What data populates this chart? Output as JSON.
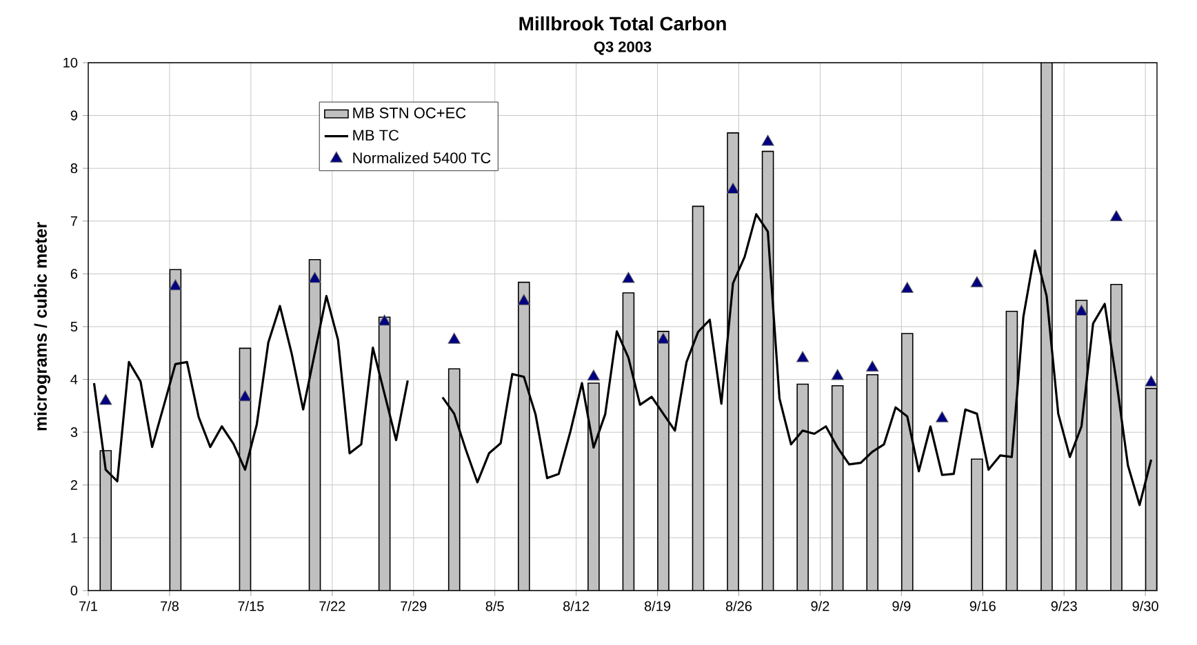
{
  "chart_data": {
    "type": "bar",
    "title": "Millbrook Total Carbon",
    "subtitle": "Q3 2003",
    "ylabel": "micrograms / cubic meter",
    "xlim": [
      "2003-07-01",
      "2003-10-01"
    ],
    "ylim": [
      0,
      10
    ],
    "xticks": [
      {
        "value": "2003-07-01",
        "label": "7/1"
      },
      {
        "value": "2003-07-08",
        "label": "7/8"
      },
      {
        "value": "2003-07-15",
        "label": "7/15"
      },
      {
        "value": "2003-07-22",
        "label": "7/22"
      },
      {
        "value": "2003-07-29",
        "label": "7/29"
      },
      {
        "value": "2003-08-05",
        "label": "8/5"
      },
      {
        "value": "2003-08-12",
        "label": "8/12"
      },
      {
        "value": "2003-08-19",
        "label": "8/19"
      },
      {
        "value": "2003-08-26",
        "label": "8/26"
      },
      {
        "value": "2003-09-02",
        "label": "9/2"
      },
      {
        "value": "2003-09-09",
        "label": "9/9"
      },
      {
        "value": "2003-09-16",
        "label": "9/16"
      },
      {
        "value": "2003-09-23",
        "label": "9/23"
      },
      {
        "value": "2003-09-30",
        "label": "9/30"
      }
    ],
    "yticks": [
      0,
      1,
      2,
      3,
      4,
      5,
      6,
      7,
      8,
      9,
      10
    ],
    "grid": true,
    "legend": "top left",
    "series": [
      {
        "name": "MB STN OC+EC",
        "color": "#c0c0c0",
        "x": [
          "2003-07-02T12:00",
          "2003-07-08T12:00",
          "2003-07-14T12:00",
          "2003-07-20T12:00",
          "2003-07-26T12:00",
          "2003-08-01T12:00",
          "2003-08-07T12:00",
          "2003-08-13T12:00",
          "2003-08-16T12:00",
          "2003-08-19T12:00",
          "2003-08-22T12:00",
          "2003-08-25T12:00",
          "2003-08-28T12:00",
          "2003-08-31T12:00",
          "2003-09-03T12:00",
          "2003-09-06T12:00",
          "2003-09-09T12:00",
          "2003-09-15T12:00",
          "2003-09-18T12:00",
          "2003-09-21T12:00",
          "2003-09-24T12:00",
          "2003-09-27T12:00",
          "2003-09-30T12:00"
        ],
        "values": [
          2.65,
          6.08,
          4.59,
          6.27,
          5.18,
          4.2,
          5.84,
          3.93,
          5.64,
          4.91,
          7.28,
          8.67,
          8.32,
          3.91,
          3.88,
          4.09,
          4.87,
          2.49,
          5.29,
          10,
          5.5,
          5.8,
          3.83
        ]
      },
      {
        "name": "MB TC",
        "type": "line",
        "color": "#000000",
        "x": [
          "2003-07-01T12:00",
          "2003-07-02T12:00",
          "2003-07-03T12:00",
          "2003-07-04T12:00",
          "2003-07-05T12:00",
          "2003-07-06T12:00",
          "2003-07-07T12:00",
          "2003-07-08T12:00",
          "2003-07-09T12:00",
          "2003-07-10T12:00",
          "2003-07-11T12:00",
          "2003-07-12T12:00",
          "2003-07-13T12:00",
          "2003-07-14T12:00",
          "2003-07-15T12:00",
          "2003-07-16T12:00",
          "2003-07-17T12:00",
          "2003-07-18T12:00",
          "2003-07-19T12:00",
          "2003-07-20T12:00",
          "2003-07-21T12:00",
          "2003-07-22T12:00",
          "2003-07-23T12:00",
          "2003-07-24T12:00",
          "2003-07-25T12:00",
          "2003-07-26T12:00",
          "2003-07-27T12:00",
          "2003-07-28T12:00",
          "2003-07-29T12:00",
          "2003-07-30T12:00",
          "2003-07-31T12:00",
          "2003-08-01T12:00",
          "2003-08-02T12:00",
          "2003-08-03T12:00",
          "2003-08-04T12:00",
          "2003-08-05T12:00",
          "2003-08-06T12:00",
          "2003-08-07T12:00",
          "2003-08-08T12:00",
          "2003-08-09T12:00",
          "2003-08-10T12:00",
          "2003-08-11T12:00",
          "2003-08-12T12:00",
          "2003-08-13T12:00",
          "2003-08-14T12:00",
          "2003-08-15T12:00",
          "2003-08-16T12:00",
          "2003-08-17T12:00",
          "2003-08-18T12:00",
          "2003-08-19T12:00",
          "2003-08-20T12:00",
          "2003-08-21T12:00",
          "2003-08-22T12:00",
          "2003-08-23T12:00",
          "2003-08-24T12:00",
          "2003-08-25T12:00",
          "2003-08-26T12:00",
          "2003-08-27T12:00",
          "2003-08-28T12:00",
          "2003-08-29T12:00",
          "2003-08-30T12:00",
          "2003-08-31T12:00",
          "2003-09-01T12:00",
          "2003-09-02T12:00",
          "2003-09-03T12:00",
          "2003-09-04T12:00",
          "2003-09-05T12:00",
          "2003-09-06T12:00",
          "2003-09-07T12:00",
          "2003-09-08T12:00",
          "2003-09-09T12:00",
          "2003-09-10T12:00",
          "2003-09-11T12:00",
          "2003-09-12T12:00",
          "2003-09-13T12:00",
          "2003-09-14T12:00",
          "2003-09-15T12:00",
          "2003-09-16T12:00",
          "2003-09-17T12:00",
          "2003-09-18T12:00",
          "2003-09-19T12:00",
          "2003-09-20T12:00",
          "2003-09-21T12:00",
          "2003-09-22T12:00",
          "2003-09-23T12:00",
          "2003-09-24T12:00",
          "2003-09-25T12:00",
          "2003-09-26T12:00",
          "2003-09-27T12:00",
          "2003-09-28T12:00",
          "2003-09-29T12:00",
          "2003-09-30T12:00"
        ],
        "values": [
          3.93,
          2.29,
          2.07,
          4.33,
          3.96,
          2.72,
          3.5,
          4.29,
          4.33,
          3.29,
          2.72,
          3.11,
          2.78,
          2.29,
          3.14,
          4.7,
          5.39,
          4.5,
          3.43,
          4.5,
          5.58,
          4.75,
          2.6,
          2.77,
          4.6,
          3.73,
          2.85,
          3.98,
          null,
          null,
          3.66,
          3.35,
          2.67,
          2.05,
          2.6,
          2.79,
          4.1,
          4.05,
          3.34,
          2.13,
          2.21,
          3.01,
          3.93,
          2.71,
          3.34,
          4.91,
          4.41,
          3.52,
          3.67,
          3.35,
          3.03,
          4.33,
          4.9,
          5.13,
          3.54,
          5.82,
          6.32,
          7.13,
          6.8,
          3.64,
          2.77,
          3.03,
          2.97,
          3.11,
          2.71,
          2.39,
          2.42,
          2.63,
          2.77,
          3.47,
          3.3,
          2.26,
          3.11,
          2.19,
          2.21,
          3.43,
          3.35,
          2.29,
          2.56,
          2.53,
          5.19,
          6.44,
          5.58,
          3.35,
          2.53,
          3.11,
          5.06,
          5.43,
          3.98,
          2.37,
          1.62,
          2.48
        ]
      },
      {
        "name": "Normalized 5400 TC",
        "type": "scatter",
        "marker": "triangle",
        "color": "#000080",
        "x": [
          "2003-07-02T12:00",
          "2003-07-08T12:00",
          "2003-07-14T12:00",
          "2003-07-20T12:00",
          "2003-07-26T12:00",
          "2003-08-01T12:00",
          "2003-08-07T12:00",
          "2003-08-13T12:00",
          "2003-08-16T12:00",
          "2003-08-19T12:00",
          "2003-08-25T12:00",
          "2003-08-28T12:00",
          "2003-08-31T12:00",
          "2003-09-03T12:00",
          "2003-09-06T12:00",
          "2003-09-09T12:00",
          "2003-09-12T12:00",
          "2003-09-15T12:00",
          "2003-09-24T12:00",
          "2003-09-27T12:00",
          "2003-09-30T12:00"
        ],
        "values": [
          3.59,
          5.76,
          3.66,
          5.9,
          5.09,
          4.75,
          5.48,
          4.05,
          5.9,
          4.75,
          7.59,
          8.5,
          4.4,
          4.06,
          4.22,
          5.71,
          3.26,
          5.82,
          5.28,
          7.07,
          3.94
        ]
      }
    ]
  }
}
